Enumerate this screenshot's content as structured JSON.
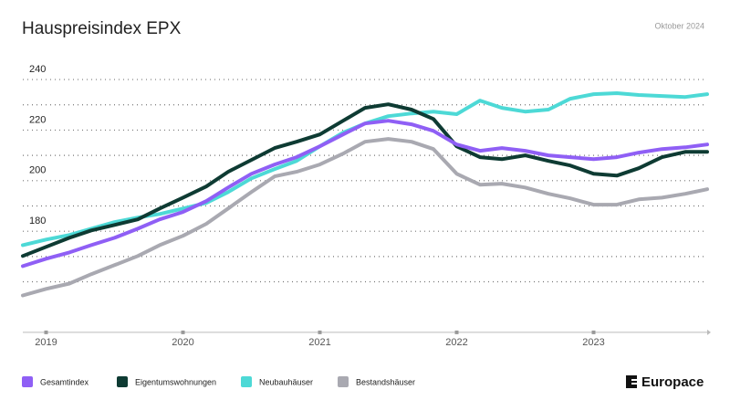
{
  "chart_data": {
    "type": "line",
    "title": "Hauspreisindex EPX",
    "subtitle": "Oktober 2024",
    "brand": "Europace",
    "x": [
      2018.83,
      2019,
      2019.17,
      2019.33,
      2019.5,
      2019.67,
      2019.83,
      2020,
      2020.17,
      2020.33,
      2020.5,
      2020.67,
      2020.83,
      2021,
      2021.17,
      2021.33,
      2021.5,
      2021.67,
      2021.83,
      2022,
      2022.17,
      2022.33,
      2022.5,
      2022.67,
      2022.83,
      2023,
      2023.17,
      2023.33,
      2023.5,
      2023.67,
      2023.83
    ],
    "series": [
      {
        "name": "Gesamtindex",
        "color": "#8f5ff5",
        "values": [
          166.2,
          169.1,
          171.6,
          174.5,
          177.4,
          181.0,
          184.7,
          187.6,
          191.9,
          197.3,
          202.7,
          206.4,
          209.3,
          213.6,
          218.3,
          222.6,
          223.7,
          222.3,
          219.7,
          214.3,
          211.8,
          212.9,
          211.8,
          210.0,
          209.3,
          208.5,
          209.3,
          211.1,
          212.5,
          213.2,
          214.3
        ]
      },
      {
        "name": "Eigentumswohnungen",
        "color": "#0e3b33",
        "values": [
          170.2,
          173.8,
          177.4,
          180.3,
          182.5,
          184.7,
          189.0,
          193.3,
          197.7,
          203.5,
          208.2,
          212.9,
          215.4,
          218.3,
          223.7,
          228.8,
          230.2,
          228.1,
          224.4,
          213.6,
          209.3,
          208.5,
          210.0,
          207.8,
          206.0,
          202.7,
          202.0,
          204.9,
          209.3,
          211.4,
          211.4
        ]
      },
      {
        "name": "Neubauhäuser",
        "color": "#4dd9d6",
        "values": [
          174.5,
          176.7,
          178.5,
          181.0,
          183.6,
          185.4,
          186.8,
          189.0,
          191.2,
          195.5,
          200.9,
          204.6,
          207.8,
          213.6,
          219.0,
          222.6,
          225.5,
          226.6,
          227.3,
          226.3,
          231.7,
          228.8,
          227.3,
          228.1,
          232.4,
          234.2,
          234.6,
          233.9,
          233.5,
          233.1,
          234.2
        ]
      },
      {
        "name": "Bestandshäuser",
        "color": "#a9a9b1",
        "values": [
          154.6,
          157.2,
          159.3,
          163.0,
          166.6,
          170.2,
          174.5,
          178.2,
          182.9,
          189.0,
          195.5,
          201.7,
          203.5,
          206.4,
          210.7,
          215.4,
          216.5,
          215.4,
          212.5,
          202.7,
          198.4,
          198.8,
          197.3,
          194.8,
          193.0,
          190.5,
          190.5,
          192.6,
          193.3,
          194.8,
          196.6
        ]
      }
    ],
    "xlim": [
      2018.83,
      2023.83
    ],
    "xticks": [
      2019,
      2020,
      2021,
      2022,
      2023
    ],
    "ylim": [
      140,
      250
    ],
    "yticks": [
      180,
      200,
      220,
      240
    ],
    "minor_grid": [
      160,
      170,
      190,
      210,
      230
    ],
    "grid": true
  }
}
